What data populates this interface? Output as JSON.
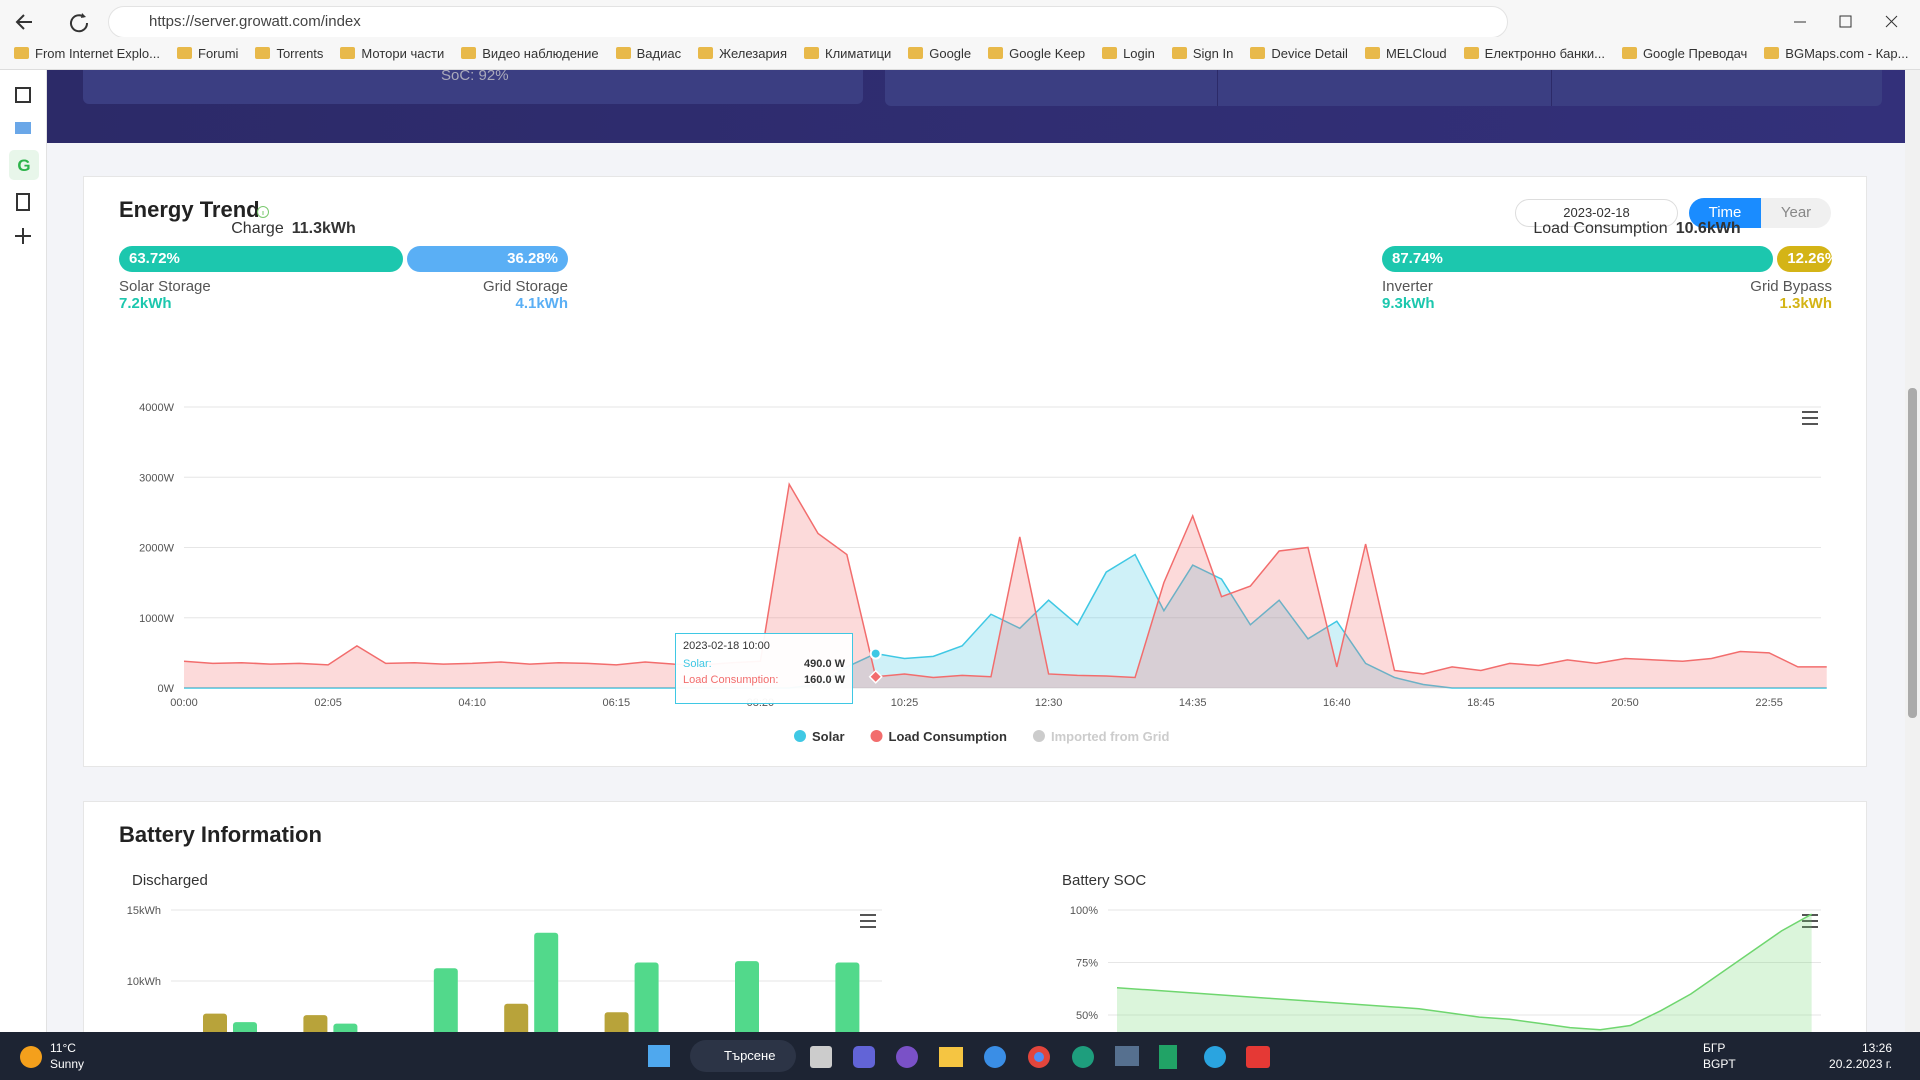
{
  "browser": {
    "url": "https://server.growatt.com/index",
    "bookmarks": [
      "From Internet Explo...",
      "Forumi",
      "Torrents",
      "Мотори части",
      "Видео наблюдение",
      "Вадиас",
      "Железария",
      "Климатици",
      "Google",
      "Google Keep",
      "Login",
      "Sign In",
      "Device Detail",
      "MELCloud",
      "Електронно банки...",
      "Google Преводач",
      "BGMaps.com - Кар..."
    ]
  },
  "banner": {
    "soc": "SoC: 92%"
  },
  "energy_summary": {
    "date": "2023-02-18",
    "tabs": [
      "Time",
      "Year"
    ],
    "charge": {
      "label": "Charge",
      "total": "11.3kWh",
      "names": [
        "Solar Storage",
        "Grid Storage"
      ],
      "amounts": [
        "7.2kWh",
        "4.1kWh"
      ],
      "values": [
        63.72,
        36.28
      ],
      "value_labels": [
        "63.72%",
        "36.28%"
      ],
      "colors": [
        "#1cc7ae",
        "#5aaff5"
      ]
    },
    "load": {
      "label": "Load Consumption",
      "total": "10.6kWh",
      "names": [
        "Inverter",
        "Grid Bypass"
      ],
      "amounts": [
        "9.3kWh",
        "1.3kWh"
      ],
      "values": [
        87.74,
        12.26
      ],
      "value_labels": [
        "87.74%",
        "12.26%"
      ],
      "colors": [
        "#1cc7ae",
        "#d4b416"
      ]
    }
  },
  "chart_data": [
    {
      "type": "area",
      "title": "Energy Trend",
      "categories": [
        "00:00",
        null,
        null,
        null,
        null,
        "02:05",
        null,
        null,
        null,
        null,
        "04:10",
        null,
        null,
        null,
        null,
        "06:15",
        null,
        null,
        null,
        null,
        "08:20",
        null,
        null,
        null,
        null,
        "10:25",
        null,
        null,
        null,
        null,
        "12:30",
        null,
        null,
        null,
        null,
        "14:35",
        null,
        null,
        null,
        null,
        "16:40",
        null,
        null,
        null,
        null,
        "18:45",
        null,
        null,
        null,
        null,
        "20:50",
        null,
        null,
        null,
        null,
        "22:55",
        null,
        null
      ],
      "series": [
        {
          "name": "Solar",
          "color": "#3fc8e4",
          "values": [
            0,
            0,
            0,
            0,
            0,
            0,
            0,
            0,
            0,
            0,
            0,
            0,
            0,
            0,
            0,
            0,
            0,
            0,
            0,
            0,
            0,
            0,
            50,
            300,
            490,
            420,
            450,
            600,
            1050,
            850,
            1250,
            900,
            1650,
            1900,
            1100,
            1750,
            1550,
            900,
            1250,
            700,
            950,
            350,
            150,
            50,
            0,
            0,
            0,
            0,
            0,
            0,
            0,
            0,
            0,
            0,
            0,
            0,
            0,
            0
          ]
        },
        {
          "name": "Load Consumption",
          "color": "#f26d6d",
          "values": [
            380,
            350,
            360,
            340,
            350,
            330,
            600,
            350,
            360,
            340,
            350,
            370,
            340,
            360,
            350,
            330,
            370,
            340,
            330,
            360,
            380,
            2900,
            2200,
            1900,
            160,
            200,
            150,
            180,
            160,
            2150,
            200,
            180,
            170,
            150,
            1500,
            2450,
            1300,
            1450,
            1950,
            2000,
            300,
            2050,
            250,
            200,
            300,
            250,
            350,
            320,
            400,
            350,
            420,
            400,
            380,
            420,
            520,
            500,
            300,
            300
          ]
        },
        {
          "name": "Imported from Grid",
          "color": "#cccccc",
          "visible": false
        }
      ],
      "ylim": [
        0,
        4000
      ],
      "yticks": [
        {
          "value": 0,
          "label": "0W"
        },
        {
          "value": 1000,
          "label": "1000W"
        },
        {
          "value": 2000,
          "label": "2000W"
        },
        {
          "value": 3000,
          "label": "3000W"
        },
        {
          "value": 4000,
          "label": "4000W"
        }
      ],
      "grid": true
    },
    {
      "type": "bar",
      "title": "Discharged",
      "categories": [
        null,
        null,
        null,
        null,
        null,
        null,
        null
      ],
      "series": [
        {
          "color": "#b8a33a",
          "values": [
            7.7,
            7.6,
            null,
            8.4,
            7.8,
            null,
            null
          ]
        },
        {
          "color": "#52d98b",
          "values": [
            7.1,
            7.0,
            10.9,
            13.4,
            11.3,
            11.4,
            11.3
          ]
        }
      ],
      "ylim": [
        0,
        15
      ],
      "yticks": [
        {
          "value": 10,
          "label": "10kWh"
        },
        {
          "value": 15,
          "label": "15kWh"
        }
      ],
      "grid": true
    },
    {
      "type": "area",
      "title": "Battery SOC",
      "series": [
        {
          "color": "#6fd66f",
          "values": [
            63,
            62,
            61,
            60,
            59,
            58,
            57,
            56,
            55,
            54,
            53,
            51,
            49,
            48,
            46,
            44,
            43,
            45,
            52,
            60,
            70,
            80,
            90,
            98
          ]
        }
      ],
      "ylim": [
        0,
        100
      ],
      "yticks": [
        {
          "value": 50,
          "label": "50%"
        },
        {
          "value": 75,
          "label": "75%"
        },
        {
          "value": 100,
          "label": "100%"
        }
      ],
      "grid": true
    }
  ],
  "tooltip": {
    "title": "2023-02-18 10:00",
    "rows": [
      [
        "Solar:",
        "490.0 W"
      ],
      [
        "Load Consumption:",
        "160.0 W"
      ]
    ]
  },
  "battery": {
    "title": "Battery Information"
  },
  "taskbar": {
    "temp": "11°C",
    "weather": "Sunny",
    "search": "Търсене",
    "lang": "БГР",
    "layout": "BGPT",
    "time": "13:26",
    "date": "20.2.2023 г."
  }
}
